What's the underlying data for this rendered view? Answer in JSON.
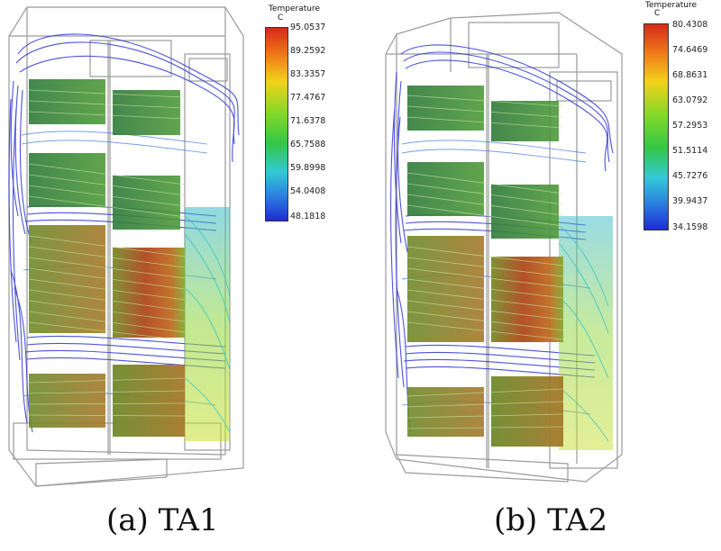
{
  "figure": {
    "panels": [
      {
        "caption": "(a) TA1",
        "legend": {
          "title": "Temperature",
          "unit": "C",
          "ticks": [
            "95.0537",
            "89.2592",
            "83.3357",
            "77.4767",
            "71.6378",
            "65.7588",
            "59.8998",
            "54.0408",
            "48.1818"
          ]
        }
      },
      {
        "caption": "(b) TA2",
        "legend": {
          "title": "Temperature",
          "unit": "C",
          "ticks": [
            "80.4308",
            "74.6469",
            "68.8631",
            "63.0792",
            "57.2953",
            "51.5114",
            "45.7276",
            "39.9437",
            "34.1598"
          ]
        }
      }
    ],
    "colors": {
      "scale_hot": "#d8281c",
      "scale_mid": "#3fc73f",
      "scale_cold": "#2b2bd6",
      "streamline_cold": "#2e34d8",
      "streamline_warm": "#33c8c8"
    }
  }
}
